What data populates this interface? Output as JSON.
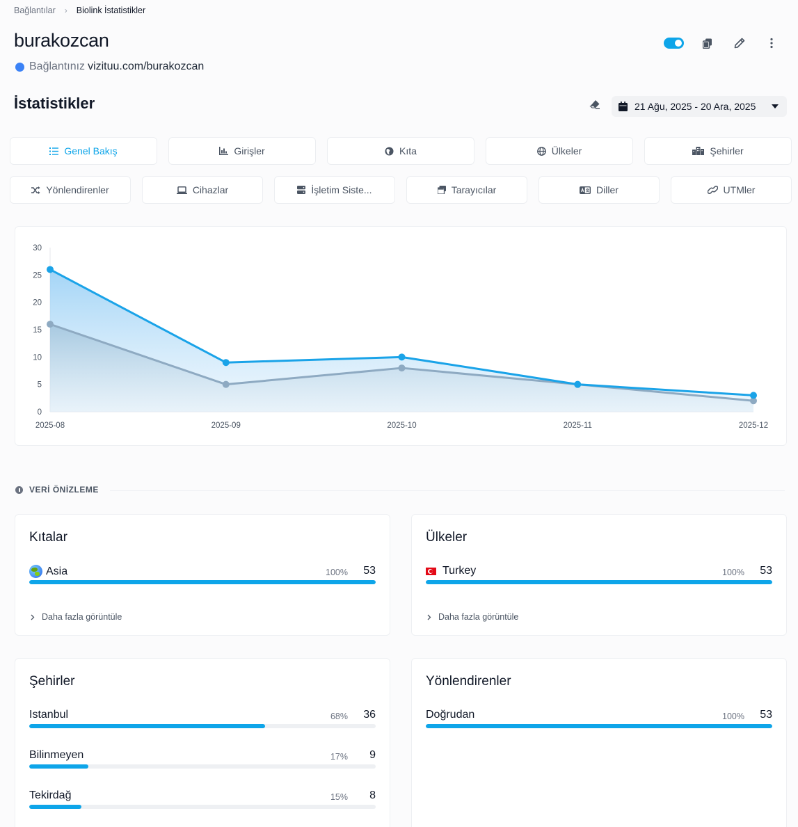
{
  "breadcrumb": {
    "parent": "Bağlantılar",
    "separator": "›",
    "current": "Biolink İstatistikler"
  },
  "header": {
    "title": "burakozcan",
    "link_label": "Bağlantınız",
    "link_url": "vizituu.com/burakozcan",
    "link_dot_color": "#3b82f6",
    "toggle_on": true,
    "actions": [
      "toggle",
      "copy-icon",
      "pencil-icon",
      "kebab-menu-icon"
    ]
  },
  "stats": {
    "title": "İstatistikler",
    "date_range": "21 Ağu, 2025 - 20 Ara, 2025",
    "accent_color": "#0ea5e9"
  },
  "tabs_row1": [
    {
      "label": "Genel Bakış",
      "icon": "list-icon",
      "active": true
    },
    {
      "label": "Girişler",
      "icon": "bar-chart-icon",
      "active": false
    },
    {
      "label": "Kıta",
      "icon": "globe-africa-icon",
      "active": false
    },
    {
      "label": "Ülkeler",
      "icon": "globe-icon",
      "active": false
    },
    {
      "label": "Şehirler",
      "icon": "city-icon",
      "active": false
    }
  ],
  "tabs_row2": [
    {
      "label": "Yönlendirenler",
      "icon": "shuffle-icon"
    },
    {
      "label": "Cihazlar",
      "icon": "laptop-icon"
    },
    {
      "label": "İşletim Siste...",
      "icon": "server-icon"
    },
    {
      "label": "Tarayıcılar",
      "icon": "windows-icon"
    },
    {
      "label": "Diller",
      "icon": "language-icon"
    },
    {
      "label": "UTMler",
      "icon": "link-icon"
    }
  ],
  "chart_data": {
    "type": "area",
    "x": [
      "2025-08",
      "2025-09",
      "2025-10",
      "2025-11",
      "2025-12"
    ],
    "series": [
      {
        "values": [
          26,
          9,
          10,
          5,
          3
        ],
        "color": "#1aa3e8"
      },
      {
        "values": [
          16,
          5,
          8,
          5,
          2
        ],
        "color": "#8eaac2"
      }
    ],
    "y_ticks": [
      0,
      5,
      10,
      15,
      20,
      25,
      30
    ],
    "ylim": [
      0,
      30
    ],
    "grid": false,
    "legend": "none"
  },
  "preview": {
    "label": "VERİ ÖNİZLEME"
  },
  "cards": {
    "continents": {
      "title": "Kıtalar",
      "more": "Daha fazla görüntüle",
      "items": [
        {
          "label": "Asia",
          "icon": "earth-globe-icon",
          "pct": "100%",
          "fraction": 1.0,
          "count": "53"
        }
      ]
    },
    "countries": {
      "title": "Ülkeler",
      "more": "Daha fazla görüntüle",
      "items": [
        {
          "label": "Turkey",
          "icon": "turkey-flag-icon",
          "pct": "100%",
          "fraction": 1.0,
          "count": "53"
        }
      ]
    },
    "cities": {
      "title": "Şehirler",
      "items": [
        {
          "label": "Istanbul",
          "pct": "68%",
          "fraction": 0.68,
          "count": "36"
        },
        {
          "label": "Bilinmeyen",
          "pct": "17%",
          "fraction": 0.17,
          "count": "9"
        },
        {
          "label": "Tekirdağ",
          "pct": "15%",
          "fraction": 0.15,
          "count": "8"
        }
      ]
    },
    "referrers": {
      "title": "Yönlendirenler",
      "items": [
        {
          "label": "Doğrudan",
          "pct": "100%",
          "fraction": 1.0,
          "count": "53"
        }
      ]
    }
  }
}
